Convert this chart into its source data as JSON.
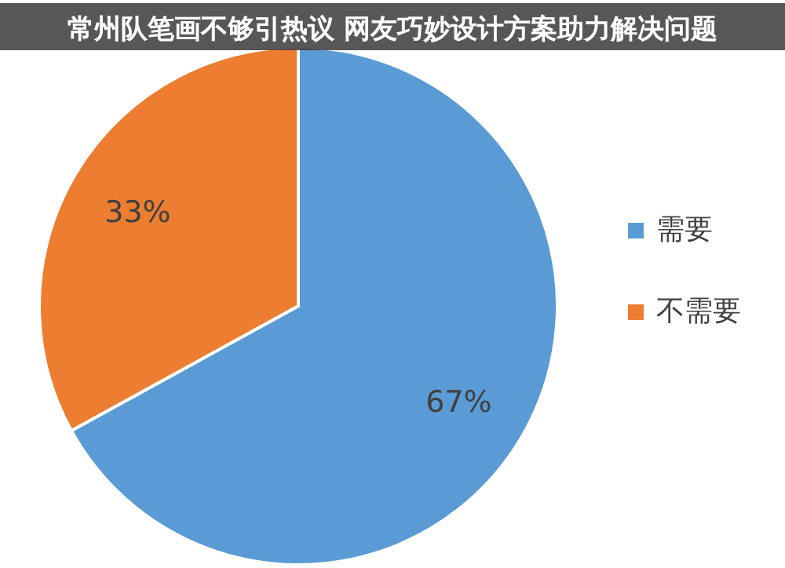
{
  "chart_data": {
    "type": "pie",
    "title": "常州队笔画不够引热议 网友巧妙设计方案助力解决问题",
    "categories": [
      "需要",
      "不需要"
    ],
    "values": [
      67,
      33
    ],
    "colors": [
      "#5b9bd5",
      "#ed7d31"
    ],
    "value_labels": [
      "67%",
      "33%"
    ],
    "legend": "right"
  }
}
